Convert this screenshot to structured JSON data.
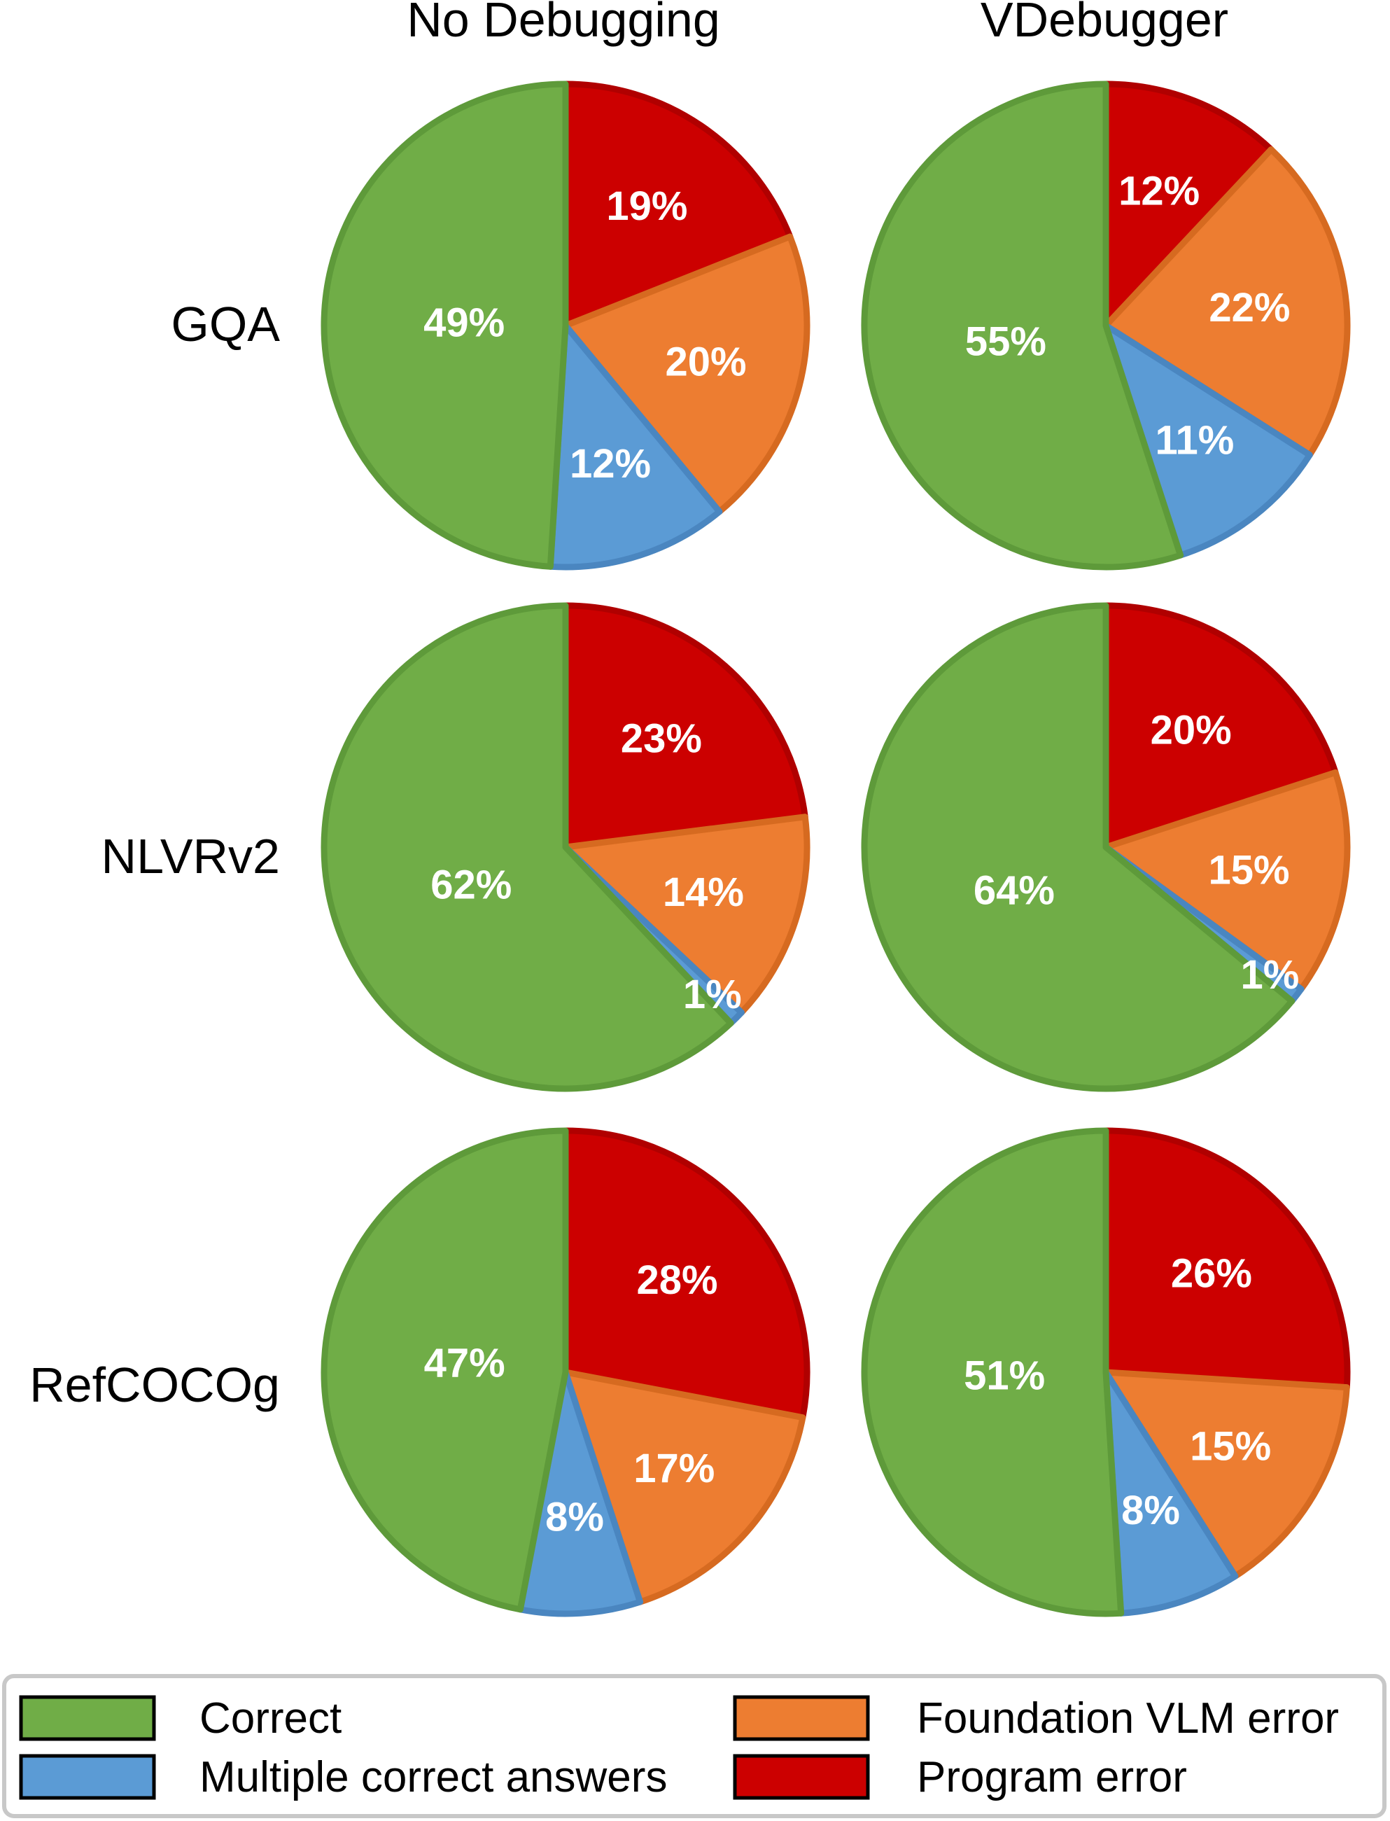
{
  "chart_data": {
    "type": "pie",
    "columns": [
      "No Debugging",
      "VDebugger"
    ],
    "rows": [
      "GQA",
      "NLVRv2",
      "RefCOCOg"
    ],
    "categories": [
      "Correct",
      "Multiple correct answers",
      "Foundation VLM error",
      "Program error"
    ],
    "colors": {
      "Correct": "#70AD47",
      "Multiple correct answers": "#5B9BD5",
      "Foundation VLM error": "#ED7D31",
      "Program error": "#CC0000"
    },
    "border_colors": {
      "Correct": "#5E9A3A",
      "Multiple correct answers": "#4A86C0",
      "Foundation VLM error": "#D66A20",
      "Program error": "#B00000"
    },
    "pies": [
      {
        "row": "GQA",
        "column": "No Debugging",
        "values": {
          "Program error": 19,
          "Foundation VLM error": 20,
          "Multiple correct answers": 12,
          "Correct": 49
        },
        "labels": {
          "Program error": "19%",
          "Foundation VLM error": "20%",
          "Multiple correct answers": "12%",
          "Correct": "49%"
        }
      },
      {
        "row": "GQA",
        "column": "VDebugger",
        "values": {
          "Program error": 12,
          "Foundation VLM error": 22,
          "Multiple correct answers": 11,
          "Correct": 55
        },
        "labels": {
          "Program error": "12%",
          "Foundation VLM error": "22%",
          "Multiple correct answers": "11%",
          "Correct": "55%"
        }
      },
      {
        "row": "NLVRv2",
        "column": "No Debugging",
        "values": {
          "Program error": 23,
          "Foundation VLM error": 14,
          "Multiple correct answers": 1,
          "Correct": 62
        },
        "labels": {
          "Program error": "23%",
          "Foundation VLM error": "14%",
          "Multiple correct answers": "1%",
          "Correct": "62%"
        }
      },
      {
        "row": "NLVRv2",
        "column": "VDebugger",
        "values": {
          "Program error": 20,
          "Foundation VLM error": 15,
          "Multiple correct answers": 1,
          "Correct": 64
        },
        "labels": {
          "Program error": "20%",
          "Foundation VLM error": "15%",
          "Multiple correct answers": "1%",
          "Correct": "64%"
        }
      },
      {
        "row": "RefCOCOg",
        "column": "No Debugging",
        "values": {
          "Program error": 28,
          "Foundation VLM error": 17,
          "Multiple correct answers": 8,
          "Correct": 47
        },
        "labels": {
          "Program error": "28%",
          "Foundation VLM error": "17%",
          "Multiple correct answers": "8%",
          "Correct": "47%"
        }
      },
      {
        "row": "RefCOCOg",
        "column": "VDebugger",
        "values": {
          "Program error": 26,
          "Foundation VLM error": 15,
          "Multiple correct answers": 8,
          "Correct": 51
        },
        "labels": {
          "Program error": "26%",
          "Foundation VLM error": "15%",
          "Multiple correct answers": "8%",
          "Correct": "51%"
        }
      }
    ],
    "slice_order": "clockwise from 12 o'clock: Program error, Foundation VLM error, Multiple correct answers, Correct",
    "legend": {
      "position": "bottom",
      "entries": [
        "Correct",
        "Multiple correct answers",
        "Foundation VLM error",
        "Program error"
      ]
    }
  }
}
